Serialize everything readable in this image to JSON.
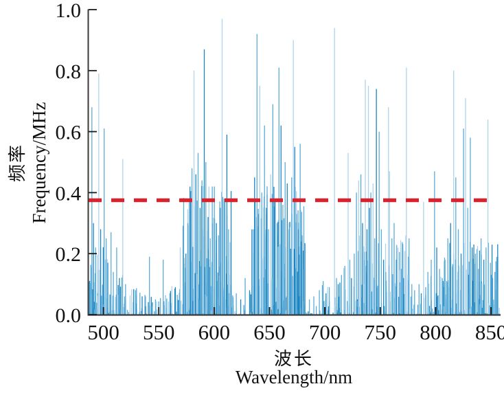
{
  "figure": {
    "background": "#ffffff",
    "axis_color": "#3a3a3a",
    "tick_color": "#1a1a1a",
    "text_color": "#111111",
    "stem_palette": [
      "#aed3ea",
      "#5bacd8",
      "#1d84c0"
    ],
    "threshold_color": "#d8232e"
  },
  "axes": {
    "x": {
      "label_zh": "波长",
      "label_en": "Wavelength/nm",
      "tick_values": [
        500,
        550,
        600,
        650,
        700,
        750,
        800,
        850
      ]
    },
    "y": {
      "label_zh": "频率",
      "label_en": "Frequency/MHz",
      "tick_labels": [
        "0.0",
        "0.2",
        "0.4",
        "0.6",
        "0.8",
        "1.0"
      ],
      "tick_values": [
        0,
        0.2,
        0.4,
        0.6,
        0.8,
        1.0
      ]
    }
  },
  "chart_data": {
    "type": "bar",
    "subtype": "stem-spectrum",
    "xlabel": "波长 Wavelength/nm",
    "ylabel": "频率 Frequency/MHz",
    "xlim": [
      486,
      858
    ],
    "ylim": [
      0,
      1
    ],
    "grid": false,
    "legend": "none",
    "threshold": 0.375,
    "peaks": [
      [
        489.6,
        0.68,
        1
      ],
      [
        491,
        0.3,
        2
      ],
      [
        493,
        0.22,
        1
      ],
      [
        495.8,
        0.79,
        0
      ],
      [
        497.5,
        0.28,
        2
      ],
      [
        500.7,
        0.61,
        1
      ],
      [
        502.5,
        0.25,
        1
      ],
      [
        504,
        0.17,
        2
      ],
      [
        506.9,
        0.27,
        1
      ],
      [
        509,
        0.14,
        1
      ],
      [
        512,
        0.22,
        1
      ],
      [
        514.5,
        0.12,
        2
      ],
      [
        517.5,
        0.51,
        0
      ],
      [
        520,
        0.1,
        1
      ],
      [
        529,
        0.08,
        1
      ],
      [
        535,
        0.06,
        2
      ],
      [
        541.6,
        0.19,
        1
      ],
      [
        547,
        0.05,
        1
      ],
      [
        554,
        0.18,
        1
      ],
      [
        560,
        0.07,
        1
      ],
      [
        565,
        0.09,
        2
      ],
      [
        569.4,
        0.22,
        0
      ],
      [
        572.5,
        0.12,
        1
      ],
      [
        574.5,
        0.2,
        2
      ],
      [
        576.2,
        0.3,
        1
      ],
      [
        578.2,
        0.42,
        2
      ],
      [
        580,
        0.48,
        1
      ],
      [
        581.8,
        0.8,
        0
      ],
      [
        583.5,
        0.46,
        2
      ],
      [
        585.5,
        0.53,
        1
      ],
      [
        587.3,
        0.35,
        2
      ],
      [
        589,
        0.44,
        1
      ],
      [
        591.1,
        0.87,
        2
      ],
      [
        592.5,
        0.5,
        1
      ],
      [
        594.5,
        0.32,
        2
      ],
      [
        596.5,
        0.25,
        1
      ],
      [
        598.3,
        0.42,
        1
      ],
      [
        600.2,
        0.42,
        1
      ],
      [
        602,
        0.3,
        2
      ],
      [
        604,
        0.26,
        1
      ],
      [
        605.5,
        0.35,
        2
      ],
      [
        607.2,
        0.97,
        0
      ],
      [
        609,
        0.38,
        1
      ],
      [
        611.5,
        0.59,
        2
      ],
      [
        613,
        0.28,
        1
      ],
      [
        620,
        0.07,
        1
      ],
      [
        624,
        0.05,
        2
      ],
      [
        628,
        0.12,
        1
      ],
      [
        632,
        0.08,
        2
      ],
      [
        635.5,
        0.28,
        1
      ],
      [
        636.5,
        0.45,
        2
      ],
      [
        638.7,
        0.92,
        1
      ],
      [
        640,
        0.33,
        2
      ],
      [
        641.2,
        0.75,
        0
      ],
      [
        643,
        0.4,
        1
      ],
      [
        645.5,
        0.62,
        1
      ],
      [
        647.2,
        0.35,
        2
      ],
      [
        649,
        0.28,
        1
      ],
      [
        651,
        0.46,
        0
      ],
      [
        653,
        0.69,
        1
      ],
      [
        655,
        0.38,
        2
      ],
      [
        656.8,
        0.3,
        1
      ],
      [
        658.5,
        0.81,
        1
      ],
      [
        660.4,
        0.62,
        2
      ],
      [
        662,
        0.36,
        1
      ],
      [
        664.1,
        0.5,
        1
      ],
      [
        666,
        0.43,
        2
      ],
      [
        668,
        0.3,
        1
      ],
      [
        670,
        0.45,
        1
      ],
      [
        671.5,
        0.9,
        0
      ],
      [
        672.8,
        0.55,
        2
      ],
      [
        674.5,
        0.33,
        1
      ],
      [
        676,
        0.28,
        2
      ],
      [
        677.7,
        0.56,
        1
      ],
      [
        679.3,
        0.26,
        2
      ],
      [
        681,
        0.15,
        1
      ],
      [
        686,
        0.05,
        1
      ],
      [
        690,
        0.06,
        1
      ],
      [
        695,
        0.08,
        1
      ],
      [
        698.5,
        0.11,
        1
      ],
      [
        701,
        0.07,
        2
      ],
      [
        704,
        0.09,
        1
      ],
      [
        708.7,
        0.94,
        0
      ],
      [
        710.5,
        0.12,
        1
      ],
      [
        712,
        0.1,
        2
      ],
      [
        715,
        0.13,
        1
      ],
      [
        718,
        0.16,
        1
      ],
      [
        721,
        0.53,
        0
      ],
      [
        722.5,
        0.18,
        1
      ],
      [
        724,
        0.12,
        2
      ],
      [
        726.5,
        0.2,
        1
      ],
      [
        728.5,
        0.4,
        1
      ],
      [
        730.5,
        0.44,
        0
      ],
      [
        732.5,
        0.46,
        1
      ],
      [
        734,
        0.3,
        2
      ],
      [
        736.5,
        0.77,
        0
      ],
      [
        738,
        0.28,
        2
      ],
      [
        739.3,
        0.75,
        0
      ],
      [
        740.2,
        0.35,
        2
      ],
      [
        741.5,
        0.4,
        1
      ],
      [
        743.5,
        0.43,
        0
      ],
      [
        745,
        0.25,
        1
      ],
      [
        746.5,
        0.74,
        2
      ],
      [
        749,
        0.6,
        1
      ],
      [
        751,
        0.28,
        1
      ],
      [
        753,
        0.18,
        2
      ],
      [
        755,
        0.14,
        1
      ],
      [
        757.4,
        0.68,
        0
      ],
      [
        758.4,
        0.47,
        0
      ],
      [
        760.5,
        0.25,
        1
      ],
      [
        762.5,
        0.3,
        1
      ],
      [
        764.5,
        0.18,
        2
      ],
      [
        766,
        0.22,
        0
      ],
      [
        769,
        0.15,
        1
      ],
      [
        771,
        0.12,
        2
      ],
      [
        773.6,
        0.81,
        0
      ],
      [
        776,
        0.25,
        1
      ],
      [
        778.5,
        0.1,
        1
      ],
      [
        781,
        0.08,
        1
      ],
      [
        785,
        0.1,
        1
      ],
      [
        787,
        0.07,
        2
      ],
      [
        789.1,
        0.37,
        0
      ],
      [
        791,
        0.09,
        1
      ],
      [
        793,
        0.14,
        1
      ],
      [
        796,
        0.18,
        1
      ],
      [
        799,
        0.47,
        1
      ],
      [
        801,
        0.22,
        2
      ],
      [
        803.5,
        0.15,
        1
      ],
      [
        806,
        0.12,
        1
      ],
      [
        808.5,
        0.18,
        1
      ],
      [
        811,
        0.25,
        1
      ],
      [
        813.5,
        0.3,
        2
      ],
      [
        816.3,
        0.8,
        0
      ],
      [
        818.2,
        0.45,
        1
      ],
      [
        820.5,
        0.28,
        1
      ],
      [
        823,
        0.2,
        2
      ],
      [
        825.2,
        0.61,
        1
      ],
      [
        827,
        0.71,
        0
      ],
      [
        829,
        0.35,
        1
      ],
      [
        831.3,
        0.58,
        1
      ],
      [
        833,
        0.22,
        2
      ],
      [
        836,
        0.2,
        1
      ],
      [
        838.5,
        0.15,
        1
      ],
      [
        841,
        0.25,
        1
      ],
      [
        843.5,
        0.18,
        2
      ],
      [
        845.5,
        0.22,
        1
      ],
      [
        847.2,
        0.64,
        0
      ],
      [
        849.5,
        0.17,
        1
      ],
      [
        851.5,
        0.12,
        1
      ],
      [
        853.5,
        0.14,
        1
      ],
      [
        855.5,
        0.1,
        1
      ]
    ],
    "noise_bands": [
      {
        "from": 486,
        "to": 506,
        "per_nm": 2.6,
        "max_h": 0.22
      },
      {
        "from": 506,
        "to": 521,
        "per_nm": 1.6,
        "max_h": 0.13
      },
      {
        "from": 521,
        "to": 552,
        "per_nm": 1.1,
        "max_h": 0.09
      },
      {
        "from": 552,
        "to": 572,
        "per_nm": 1.4,
        "max_h": 0.1
      },
      {
        "from": 572,
        "to": 616,
        "per_nm": 3.0,
        "max_h": 0.42
      },
      {
        "from": 616,
        "to": 634,
        "per_nm": 0.7,
        "max_h": 0.07
      },
      {
        "from": 634,
        "to": 682,
        "per_nm": 3.0,
        "max_h": 0.42
      },
      {
        "from": 682,
        "to": 696,
        "per_nm": 0.7,
        "max_h": 0.05
      },
      {
        "from": 696,
        "to": 713,
        "per_nm": 1.1,
        "max_h": 0.1
      },
      {
        "from": 713,
        "to": 730,
        "per_nm": 1.5,
        "max_h": 0.16
      },
      {
        "from": 730,
        "to": 776,
        "per_nm": 2.2,
        "max_h": 0.26
      },
      {
        "from": 776,
        "to": 792,
        "per_nm": 0.8,
        "max_h": 0.07
      },
      {
        "from": 792,
        "to": 806,
        "per_nm": 1.8,
        "max_h": 0.15
      },
      {
        "from": 806,
        "to": 858,
        "per_nm": 2.3,
        "max_h": 0.24
      }
    ]
  }
}
